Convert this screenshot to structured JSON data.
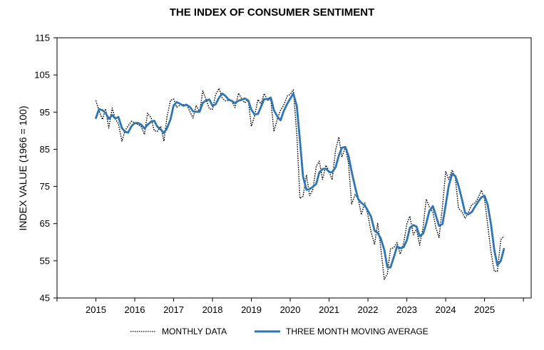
{
  "chart_data": {
    "type": "line",
    "title": "THE INDEX OF CONSUMER SENTIMENT",
    "ylabel": "INDEX VALUE (1966 = 100)",
    "xlabel": "",
    "ylim": [
      45,
      115
    ],
    "yticks": [
      45,
      55,
      65,
      75,
      85,
      95,
      105,
      115
    ],
    "xlim": [
      2014.0,
      2026.2
    ],
    "xticks": [
      "2015",
      "2016",
      "2017",
      "2018",
      "2019",
      "2020",
      "2021",
      "2022",
      "2023",
      "2024",
      "2025"
    ],
    "grid": false,
    "legend_position": "bottom",
    "series": [
      {
        "name": "MONTHLY DATA",
        "style": "dotted",
        "color": "#000000",
        "x": [
          2015.0,
          2015.08,
          2015.17,
          2015.25,
          2015.33,
          2015.42,
          2015.5,
          2015.58,
          2015.67,
          2015.75,
          2015.83,
          2015.92,
          2016.0,
          2016.08,
          2016.17,
          2016.25,
          2016.33,
          2016.42,
          2016.5,
          2016.58,
          2016.67,
          2016.75,
          2016.83,
          2016.92,
          2017.0,
          2017.08,
          2017.17,
          2017.25,
          2017.33,
          2017.42,
          2017.5,
          2017.58,
          2017.67,
          2017.75,
          2017.83,
          2017.92,
          2018.0,
          2018.08,
          2018.17,
          2018.25,
          2018.33,
          2018.42,
          2018.5,
          2018.58,
          2018.67,
          2018.75,
          2018.83,
          2018.92,
          2019.0,
          2019.08,
          2019.17,
          2019.25,
          2019.33,
          2019.42,
          2019.5,
          2019.58,
          2019.67,
          2019.75,
          2019.83,
          2019.92,
          2020.0,
          2020.08,
          2020.17,
          2020.25,
          2020.33,
          2020.42,
          2020.5,
          2020.58,
          2020.67,
          2020.75,
          2020.83,
          2020.92,
          2021.0,
          2021.08,
          2021.17,
          2021.25,
          2021.33,
          2021.42,
          2021.5,
          2021.58,
          2021.67,
          2021.75,
          2021.83,
          2021.92,
          2022.0,
          2022.08,
          2022.17,
          2022.25,
          2022.33,
          2022.42,
          2022.5,
          2022.58,
          2022.67,
          2022.75,
          2022.83,
          2022.92,
          2023.0,
          2023.08,
          2023.17,
          2023.25,
          2023.33,
          2023.42,
          2023.5,
          2023.58,
          2023.67,
          2023.75,
          2023.83,
          2023.92,
          2024.0,
          2024.08,
          2024.17,
          2024.25,
          2024.33,
          2024.42,
          2024.5,
          2024.58,
          2024.67,
          2024.75,
          2024.83,
          2024.92,
          2025.0,
          2025.08,
          2025.17,
          2025.25,
          2025.33,
          2025.42,
          2025.5
        ],
        "values": [
          98.1,
          95.4,
          93.0,
          95.9,
          90.7,
          96.1,
          93.1,
          91.9,
          87.2,
          90.0,
          91.3,
          92.6,
          92.0,
          91.7,
          91.0,
          89.0,
          94.7,
          93.5,
          90.0,
          89.8,
          91.2,
          87.2,
          93.8,
          98.2,
          98.5,
          96.3,
          96.9,
          97.0,
          97.1,
          95.1,
          93.4,
          96.8,
          95.1,
          100.7,
          98.5,
          95.9,
          95.7,
          99.7,
          101.4,
          98.8,
          98.0,
          98.2,
          97.9,
          96.2,
          100.1,
          98.6,
          97.5,
          98.3,
          91.2,
          93.8,
          98.4,
          97.2,
          100.0,
          98.2,
          98.4,
          89.8,
          93.2,
          95.5,
          96.8,
          99.3,
          99.8,
          101.0,
          89.1,
          71.8,
          72.3,
          78.1,
          72.5,
          74.1,
          80.4,
          81.8,
          76.9,
          80.7,
          79.0,
          76.8,
          84.9,
          88.3,
          82.9,
          85.5,
          81.2,
          70.3,
          72.8,
          71.7,
          67.4,
          70.6,
          67.2,
          62.8,
          59.4,
          65.2,
          58.4,
          50.0,
          51.5,
          58.2,
          58.6,
          59.9,
          56.8,
          59.7,
          64.9,
          67.0,
          62.0,
          63.5,
          59.2,
          64.2,
          71.6,
          69.5,
          68.1,
          63.8,
          61.3,
          69.7,
          79.0,
          76.9,
          79.4,
          77.2,
          69.1,
          68.2,
          66.4,
          67.9,
          70.1,
          70.5,
          71.8,
          74.0,
          71.7,
          64.7,
          57.0,
          52.2,
          52.2,
          60.7,
          61.7
        ]
      },
      {
        "name": "THREE MONTH MOVING AVERAGE",
        "style": "solid",
        "color": "#2e75b6",
        "x": [
          2015.0,
          2015.08,
          2015.17,
          2015.25,
          2015.33,
          2015.42,
          2015.5,
          2015.58,
          2015.67,
          2015.75,
          2015.83,
          2015.92,
          2016.0,
          2016.08,
          2016.17,
          2016.25,
          2016.33,
          2016.42,
          2016.5,
          2016.58,
          2016.67,
          2016.75,
          2016.83,
          2016.92,
          2017.0,
          2017.08,
          2017.17,
          2017.25,
          2017.33,
          2017.42,
          2017.5,
          2017.58,
          2017.67,
          2017.75,
          2017.83,
          2017.92,
          2018.0,
          2018.08,
          2018.17,
          2018.25,
          2018.33,
          2018.42,
          2018.5,
          2018.58,
          2018.67,
          2018.75,
          2018.83,
          2018.92,
          2019.0,
          2019.08,
          2019.17,
          2019.25,
          2019.33,
          2019.42,
          2019.5,
          2019.58,
          2019.67,
          2019.75,
          2019.83,
          2019.92,
          2020.0,
          2020.08,
          2020.17,
          2020.25,
          2020.33,
          2020.42,
          2020.5,
          2020.58,
          2020.67,
          2020.75,
          2020.83,
          2020.92,
          2021.0,
          2021.08,
          2021.17,
          2021.25,
          2021.33,
          2021.42,
          2021.5,
          2021.58,
          2021.67,
          2021.75,
          2021.83,
          2021.92,
          2022.0,
          2022.08,
          2022.17,
          2022.25,
          2022.33,
          2022.42,
          2022.5,
          2022.58,
          2022.67,
          2022.75,
          2022.83,
          2022.92,
          2023.0,
          2023.08,
          2023.17,
          2023.25,
          2023.33,
          2023.42,
          2023.5,
          2023.58,
          2023.67,
          2023.75,
          2023.83,
          2023.92,
          2024.0,
          2024.08,
          2024.17,
          2024.25,
          2024.33,
          2024.42,
          2024.5,
          2024.58,
          2024.67,
          2024.75,
          2024.83,
          2024.92,
          2025.0,
          2025.08,
          2025.17,
          2025.25,
          2025.33,
          2025.42,
          2025.5
        ],
        "values": [
          93.4,
          95.8,
          95.5,
          94.8,
          93.2,
          94.2,
          93.3,
          93.7,
          90.7,
          89.7,
          89.5,
          91.3,
          92.0,
          92.1,
          91.6,
          90.6,
          91.6,
          92.4,
          92.7,
          91.1,
          90.3,
          89.4,
          90.7,
          93.1,
          96.8,
          97.7,
          97.2,
          96.7,
          97.0,
          96.4,
          95.2,
          95.1,
          95.1,
          97.5,
          98.1,
          98.4,
          96.7,
          97.1,
          98.9,
          100.0,
          99.4,
          98.3,
          98.0,
          97.4,
          98.1,
          98.3,
          98.7,
          98.1,
          95.7,
          94.4,
          94.5,
          96.5,
          98.5,
          98.5,
          98.9,
          95.5,
          93.8,
          92.8,
          95.2,
          97.2,
          98.6,
          100.0,
          96.6,
          87.3,
          77.7,
          74.1,
          74.3,
          74.9,
          75.7,
          78.8,
          79.7,
          79.8,
          78.9,
          78.8,
          80.2,
          83.3,
          85.4,
          85.6,
          83.2,
          79.0,
          74.8,
          71.6,
          70.6,
          69.9,
          68.4,
          66.9,
          63.1,
          62.5,
          61.0,
          57.9,
          53.3,
          53.2,
          56.1,
          58.9,
          58.4,
          58.7,
          60.5,
          63.9,
          64.6,
          64.2,
          61.6,
          62.3,
          65.0,
          68.4,
          69.7,
          67.1,
          64.4,
          64.9,
          70.0,
          75.2,
          78.4,
          77.8,
          75.2,
          71.5,
          67.9,
          67.5,
          68.1,
          69.5,
          70.8,
          72.1,
          72.5,
          70.1,
          64.5,
          58.0,
          53.8,
          55.0,
          58.2
        ]
      }
    ]
  }
}
